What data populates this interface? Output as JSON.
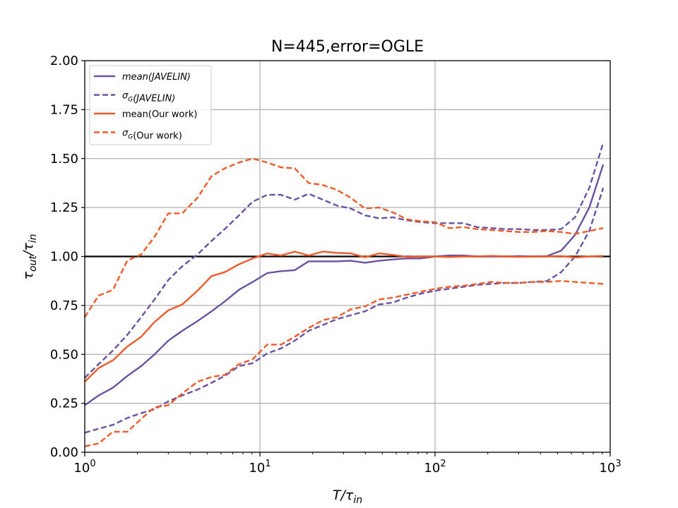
{
  "chart_data": {
    "type": "line",
    "title": "N=445,error=OGLE",
    "xlabel": {
      "main": "T/τ",
      "sub": "in"
    },
    "ylabel": {
      "main": "τ",
      "sub1": "out",
      "sep": "/τ",
      "sub2": "in"
    },
    "xscale": "log",
    "xlim": [
      1,
      1000
    ],
    "ylim": [
      0.0,
      2.0
    ],
    "grid": true,
    "legend_position": "top-left",
    "yticks": [
      "0.00",
      "0.25",
      "0.50",
      "0.75",
      "1.00",
      "1.25",
      "1.50",
      "1.75",
      "2.00"
    ],
    "xticks": [
      {
        "base": "10",
        "exp": "0",
        "value": 1
      },
      {
        "base": "10",
        "exp": "1",
        "value": 10
      },
      {
        "base": "10",
        "exp": "2",
        "value": 100
      },
      {
        "base": "10",
        "exp": "3",
        "value": 1000
      }
    ],
    "reference_line": {
      "y": 1.0,
      "color": "#000000"
    },
    "series": [
      {
        "name": "mean(JAVELIN)",
        "legend_parts": [
          {
            "t": "mean(JAVELIN)",
            "italic": true
          }
        ],
        "color": "#6b52a1",
        "dash": "solid",
        "x": [
          1,
          1.2,
          1.45,
          1.75,
          2.1,
          2.5,
          3,
          3.6,
          4.4,
          5.3,
          6.3,
          7.6,
          9.1,
          11,
          13.2,
          15.8,
          19,
          22.9,
          27.5,
          33,
          39.8,
          47.9,
          57.5,
          69,
          83,
          100,
          120,
          145,
          174,
          209,
          251,
          302,
          363,
          437,
          525,
          630,
          760,
          912
        ],
        "y": [
          0.24,
          0.29,
          0.33,
          0.39,
          0.44,
          0.5,
          0.57,
          0.62,
          0.67,
          0.72,
          0.77,
          0.83,
          0.87,
          0.915,
          0.925,
          0.93,
          0.975,
          0.975,
          0.975,
          0.978,
          0.968,
          0.978,
          0.985,
          0.99,
          0.99,
          1.0,
          1.005,
          1.005,
          1.0,
          1.0,
          1.0,
          1.002,
          1.0,
          1.002,
          1.03,
          1.11,
          1.25,
          1.47
        ]
      },
      {
        "name": "σG(JAVELIN) upper",
        "legend_parts": [
          {
            "t": "σ",
            "italic": true
          },
          {
            "t": "G",
            "italic": true,
            "sub": true
          },
          {
            "t": "(JAVELIN)",
            "italic": true
          }
        ],
        "color": "#6b52a1",
        "dash": "dashed",
        "x": [
          1,
          1.2,
          1.45,
          1.75,
          2.1,
          2.5,
          3,
          3.6,
          4.4,
          5.3,
          6.3,
          7.6,
          9.1,
          11,
          13.2,
          15.8,
          19,
          22.9,
          27.5,
          33,
          39.8,
          47.9,
          57.5,
          69,
          83,
          100,
          120,
          145,
          174,
          209,
          251,
          302,
          363,
          437,
          525,
          630,
          760,
          912
        ],
        "y": [
          0.38,
          0.45,
          0.52,
          0.6,
          0.69,
          0.78,
          0.88,
          0.95,
          1.01,
          1.08,
          1.14,
          1.21,
          1.28,
          1.315,
          1.315,
          1.29,
          1.32,
          1.29,
          1.26,
          1.245,
          1.21,
          1.195,
          1.2,
          1.185,
          1.175,
          1.17,
          1.17,
          1.17,
          1.15,
          1.145,
          1.14,
          1.14,
          1.135,
          1.135,
          1.14,
          1.2,
          1.35,
          1.58
        ]
      },
      {
        "name": "σG(JAVELIN) lower",
        "color": "#6b52a1",
        "dash": "dashed",
        "x": [
          1,
          1.2,
          1.45,
          1.75,
          2.1,
          2.5,
          3,
          3.6,
          4.4,
          5.3,
          6.3,
          7.6,
          9.1,
          11,
          13.2,
          15.8,
          19,
          22.9,
          27.5,
          33,
          39.8,
          47.9,
          57.5,
          69,
          83,
          100,
          120,
          145,
          174,
          209,
          251,
          302,
          363,
          437,
          525,
          630,
          760,
          912
        ],
        "y": [
          0.1,
          0.12,
          0.14,
          0.175,
          0.2,
          0.22,
          0.26,
          0.29,
          0.32,
          0.355,
          0.39,
          0.44,
          0.455,
          0.505,
          0.53,
          0.57,
          0.62,
          0.65,
          0.68,
          0.7,
          0.72,
          0.755,
          0.765,
          0.79,
          0.81,
          0.825,
          0.835,
          0.845,
          0.855,
          0.86,
          0.865,
          0.865,
          0.87,
          0.875,
          0.92,
          1.0,
          1.13,
          1.35
        ]
      },
      {
        "name": "mean(Our work)",
        "legend_parts": [
          {
            "t": "mean(Our work)",
            "italic": false
          }
        ],
        "color": "#f05a28",
        "dash": "solid",
        "x": [
          1,
          1.2,
          1.45,
          1.75,
          2.1,
          2.5,
          3,
          3.6,
          4.4,
          5.3,
          6.3,
          7.6,
          9.1,
          11,
          13.2,
          15.8,
          19,
          22.9,
          27.5,
          33,
          39.8,
          47.9,
          57.5,
          69,
          83,
          100,
          120,
          145,
          174,
          209,
          251,
          302,
          363,
          437,
          525,
          630,
          760,
          912
        ],
        "y": [
          0.36,
          0.43,
          0.47,
          0.54,
          0.59,
          0.665,
          0.725,
          0.755,
          0.825,
          0.9,
          0.92,
          0.96,
          0.99,
          1.015,
          1.005,
          1.025,
          1.005,
          1.025,
          1.018,
          1.016,
          0.996,
          1.016,
          1.008,
          0.998,
          1.0,
          1.0,
          0.997,
          1.0,
          1.0,
          1.003,
          1.0,
          0.998,
          1.0,
          1.0,
          1.002,
          0.995,
          1.0,
          1.003
        ]
      },
      {
        "name": "σG(Our work) upper",
        "legend_parts": [
          {
            "t": "σ",
            "italic": true
          },
          {
            "t": "G",
            "italic": true,
            "sub": true
          },
          {
            "t": "(Our work)",
            "italic": false
          }
        ],
        "color": "#f05a28",
        "dash": "dashed",
        "x": [
          1,
          1.2,
          1.45,
          1.75,
          2.1,
          2.5,
          3,
          3.6,
          4.4,
          5.3,
          6.3,
          7.6,
          9.1,
          11,
          13.2,
          15.8,
          19,
          22.9,
          27.5,
          33,
          39.8,
          47.9,
          57.5,
          69,
          83,
          100,
          120,
          145,
          174,
          209,
          251,
          302,
          363,
          437,
          525,
          630,
          760,
          912
        ],
        "y": [
          0.69,
          0.8,
          0.83,
          0.98,
          1.01,
          1.1,
          1.22,
          1.22,
          1.3,
          1.41,
          1.45,
          1.48,
          1.5,
          1.48,
          1.455,
          1.45,
          1.375,
          1.365,
          1.34,
          1.3,
          1.245,
          1.25,
          1.225,
          1.19,
          1.18,
          1.175,
          1.145,
          1.15,
          1.14,
          1.135,
          1.13,
          1.125,
          1.125,
          1.13,
          1.125,
          1.115,
          1.13,
          1.145
        ]
      },
      {
        "name": "σG(Our work) lower",
        "color": "#f05a28",
        "dash": "dashed",
        "x": [
          1,
          1.2,
          1.45,
          1.75,
          2.1,
          2.5,
          3,
          3.6,
          4.4,
          5.3,
          6.3,
          7.6,
          9.1,
          11,
          13.2,
          15.8,
          19,
          22.9,
          27.5,
          33,
          39.8,
          47.9,
          57.5,
          69,
          83,
          100,
          120,
          145,
          174,
          209,
          251,
          302,
          363,
          437,
          525,
          630,
          760,
          912
        ],
        "y": [
          0.03,
          0.045,
          0.105,
          0.105,
          0.17,
          0.23,
          0.24,
          0.3,
          0.36,
          0.385,
          0.395,
          0.45,
          0.475,
          0.55,
          0.55,
          0.59,
          0.635,
          0.675,
          0.69,
          0.73,
          0.745,
          0.78,
          0.79,
          0.805,
          0.82,
          0.835,
          0.845,
          0.85,
          0.86,
          0.87,
          0.865,
          0.865,
          0.87,
          0.87,
          0.875,
          0.87,
          0.865,
          0.86
        ]
      }
    ]
  }
}
